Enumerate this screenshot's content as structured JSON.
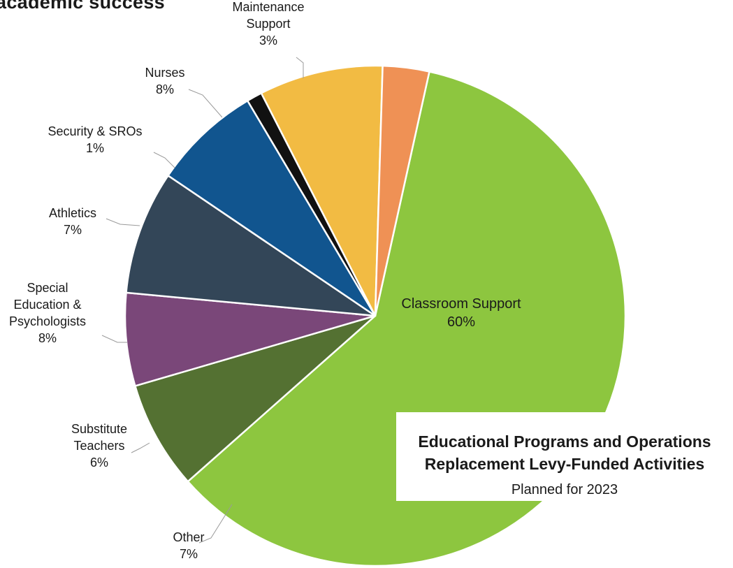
{
  "heading": "academic success",
  "chart_data": {
    "type": "pie",
    "title": "Educational Programs and Operations Replacement Levy-Funded Activities",
    "title_lines": [
      "Educational Programs and Operations",
      "Replacement Levy-Funded Activities"
    ],
    "subtitle": "Planned for 2023",
    "slices": [
      {
        "label": "Classroom Support",
        "label_lines": [
          "Classroom Support"
        ],
        "value": 60,
        "value_text": "60%",
        "color": "#8dc63f"
      },
      {
        "label": "Other",
        "label_lines": [
          "Other"
        ],
        "value": 7,
        "value_text": "7%",
        "color": "#547132"
      },
      {
        "label": "Substitute Teachers",
        "label_lines": [
          "Substitute",
          "Teachers"
        ],
        "value": 6,
        "value_text": "6%",
        "color": "#7a4779"
      },
      {
        "label": "Special Education & Psychologists",
        "label_lines": [
          "Special",
          "Education &",
          "Psychologists"
        ],
        "value": 8,
        "value_text": "8%",
        "color": "#334658"
      },
      {
        "label": "Athletics",
        "label_lines": [
          "Athletics"
        ],
        "value": 7,
        "value_text": "7%",
        "color": "#11558f"
      },
      {
        "label": "Security & SROs",
        "label_lines": [
          "Security & SROs"
        ],
        "value": 1,
        "value_text": "1%",
        "color": "#111111"
      },
      {
        "label": "Nurses",
        "label_lines": [
          "Nurses"
        ],
        "value": 8,
        "value_text": "8%",
        "color": "#f2bb43"
      },
      {
        "label": "Maintenance Support",
        "label_lines": [
          "Maintenance",
          "Support"
        ],
        "value": 3,
        "value_text": "3%",
        "color": "#ef9155"
      }
    ]
  }
}
